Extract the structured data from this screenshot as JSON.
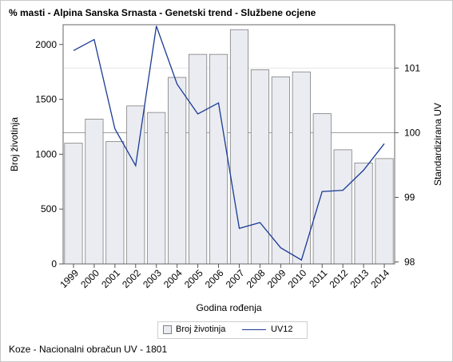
{
  "footnote": "Koze - Nacionalni obračun UV - 1801",
  "chart_data": {
    "type": "bar",
    "title": "% masti - Alpina Sanska Srnasta - Genetski trend - Službene ocjene",
    "xlabel": "Godina rođenja",
    "ylabel": "Broj životinja",
    "y2label": "Standardizirana UV",
    "categories": [
      "1999",
      "2000",
      "2001",
      "2002",
      "2003",
      "2004",
      "2005",
      "2006",
      "2007",
      "2008",
      "2009",
      "2010",
      "2011",
      "2012",
      "2013",
      "2014"
    ],
    "ylim": [
      0,
      2180
    ],
    "yticks": [
      0,
      500,
      1000,
      1500,
      2000
    ],
    "y2lim": [
      97.97,
      101.67
    ],
    "y2ticks": [
      98,
      99,
      100,
      101
    ],
    "y2_reference": 100,
    "grid": "horizontal reference lines",
    "legend_position": "bottom",
    "colors": {
      "bar_fill": "#eaecf2",
      "bar_stroke": "#7f7f7f",
      "line": "#1a3a93",
      "reference": "#9a9a9a"
    },
    "series": [
      {
        "name": "Broj životinja",
        "type": "bar",
        "axis": "left",
        "values": [
          1100,
          1320,
          1115,
          1440,
          1380,
          1700,
          1910,
          1910,
          2135,
          1770,
          1705,
          1750,
          1370,
          1040,
          920,
          960
        ]
      },
      {
        "name": "UV12",
        "type": "line",
        "axis": "right",
        "values": [
          101.27,
          101.44,
          100.06,
          99.49,
          101.65,
          100.75,
          100.29,
          100.46,
          98.52,
          98.61,
          98.22,
          98.03,
          99.09,
          99.11,
          99.42,
          99.83
        ]
      }
    ]
  }
}
